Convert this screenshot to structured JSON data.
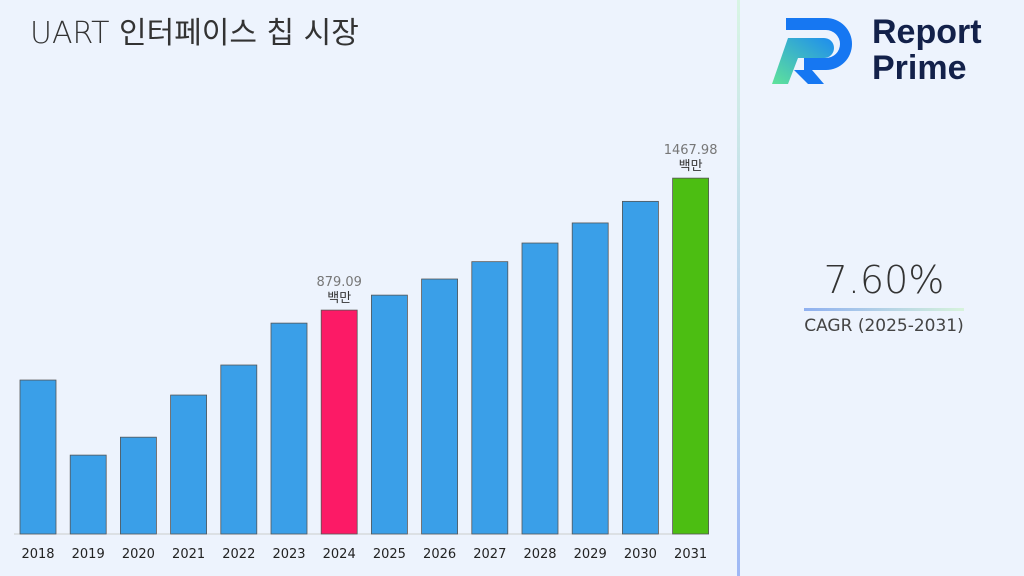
{
  "title": "UART 인터페이스 칩 시장",
  "logo": {
    "line1": "Report",
    "line2": "Prime"
  },
  "cagr": {
    "value": "7.60%",
    "label": "CAGR (2025-2031)"
  },
  "chart_data": {
    "type": "bar",
    "title": "UART 인터페이스 칩 시장",
    "categories": [
      "2018",
      "2019",
      "2020",
      "2021",
      "2022",
      "2023",
      "2024",
      "2025",
      "2026",
      "2027",
      "2028",
      "2029",
      "2030",
      "2031"
    ],
    "values": [
      567,
      232,
      312,
      500,
      634,
      821,
      879.09,
      945.9,
      1017.8,
      1095.2,
      1178.4,
      1268.0,
      1364.3,
      1467.98
    ],
    "colors": {
      "default": "#3a9fe8",
      "highlight_2024": "#fc1a66",
      "highlight_2031": "#4cbe12"
    },
    "annotations": [
      {
        "category": "2024",
        "value": "879.09",
        "unit": "백만"
      },
      {
        "category": "2031",
        "value": "1467.98",
        "unit": "백만"
      }
    ],
    "xlabel": "",
    "ylabel": "",
    "grid": false,
    "legend": "none"
  }
}
